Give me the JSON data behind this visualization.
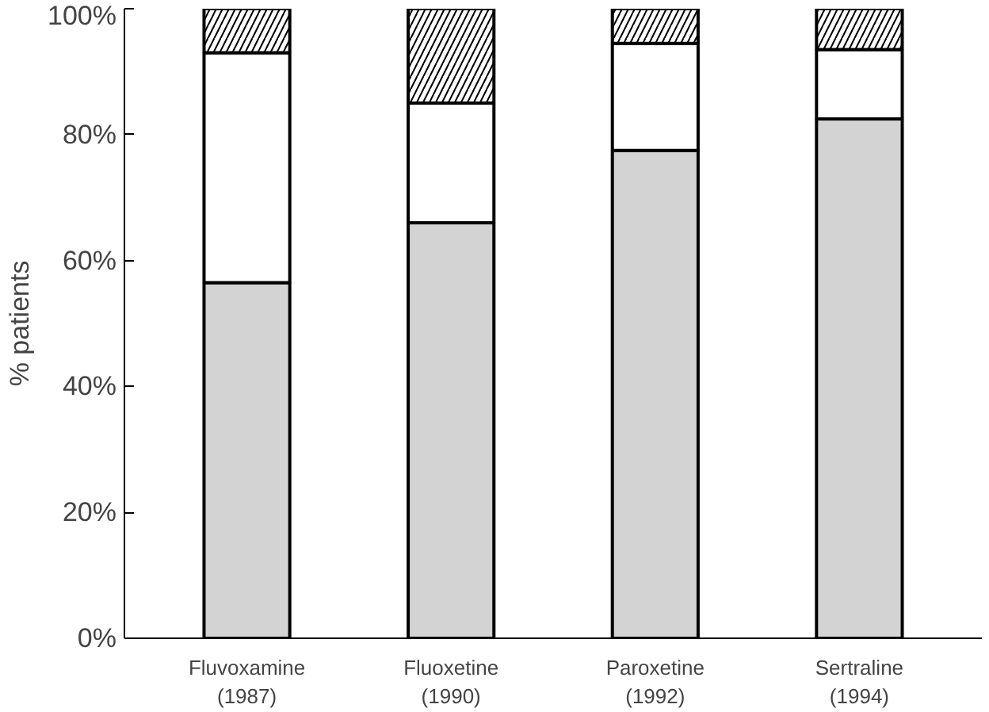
{
  "chart_data": {
    "type": "bar",
    "stacked": true,
    "ylabel": "% patients",
    "categories": [
      "Fluvoxamine\n(1987)",
      "Fluoxetine\n(1990)",
      "Paroxetine\n(1992)",
      "Sertraline\n(1994)"
    ],
    "series": [
      {
        "color": "#d3d3d3",
        "values": [
          56.5,
          66,
          77.5,
          82.5
        ]
      },
      {
        "color": "#ffffff",
        "values": [
          36.5,
          19,
          17,
          11
        ]
      },
      {
        "color": "#ffffff",
        "values": [
          7,
          15,
          5.5,
          6.5
        ]
      }
    ],
    "ylim": [
      0,
      100
    ],
    "yticks": [
      {
        "value": 0,
        "label": "0%"
      },
      {
        "value": 20,
        "label": "20%"
      },
      {
        "value": 40,
        "label": "40%"
      },
      {
        "value": 60,
        "label": "60%"
      },
      {
        "value": 80,
        "label": "80%"
      },
      {
        "value": 100,
        "label": "100%"
      }
    ],
    "grid": false
  }
}
